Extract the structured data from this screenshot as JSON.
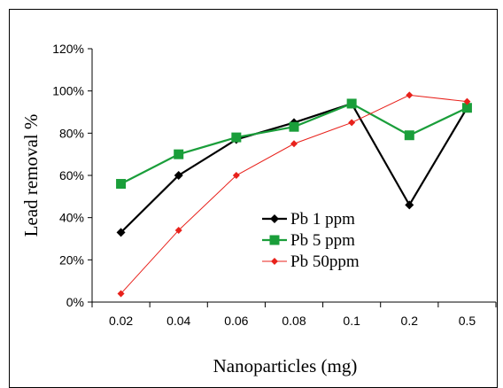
{
  "chart_data": {
    "type": "line",
    "title": "",
    "xlabel": "Nanoparticles (mg)",
    "ylabel": "Lead removal %",
    "categories": [
      "0.02",
      "0.04",
      "0.06",
      "0.08",
      "0.1",
      "0.2",
      "0.5"
    ],
    "y_ticks": [
      "0%",
      "20%",
      "40%",
      "60%",
      "80%",
      "100%",
      "120%"
    ],
    "ylim": [
      0,
      120
    ],
    "grid": false,
    "legend_position": "center-right",
    "series": [
      {
        "name": "Pb 1 ppm",
        "values": [
          33,
          60,
          77,
          85,
          94,
          46,
          92
        ],
        "color": "#000000",
        "marker": "diamond"
      },
      {
        "name": "Pb 5 ppm",
        "values": [
          56,
          70,
          78,
          83,
          94,
          79,
          92
        ],
        "color": "#1a9e3a",
        "marker": "square"
      },
      {
        "name": "Pb 50ppm",
        "values": [
          4,
          34,
          60,
          75,
          85,
          98,
          95
        ],
        "color": "#e8211b",
        "marker": "diamond"
      }
    ]
  }
}
